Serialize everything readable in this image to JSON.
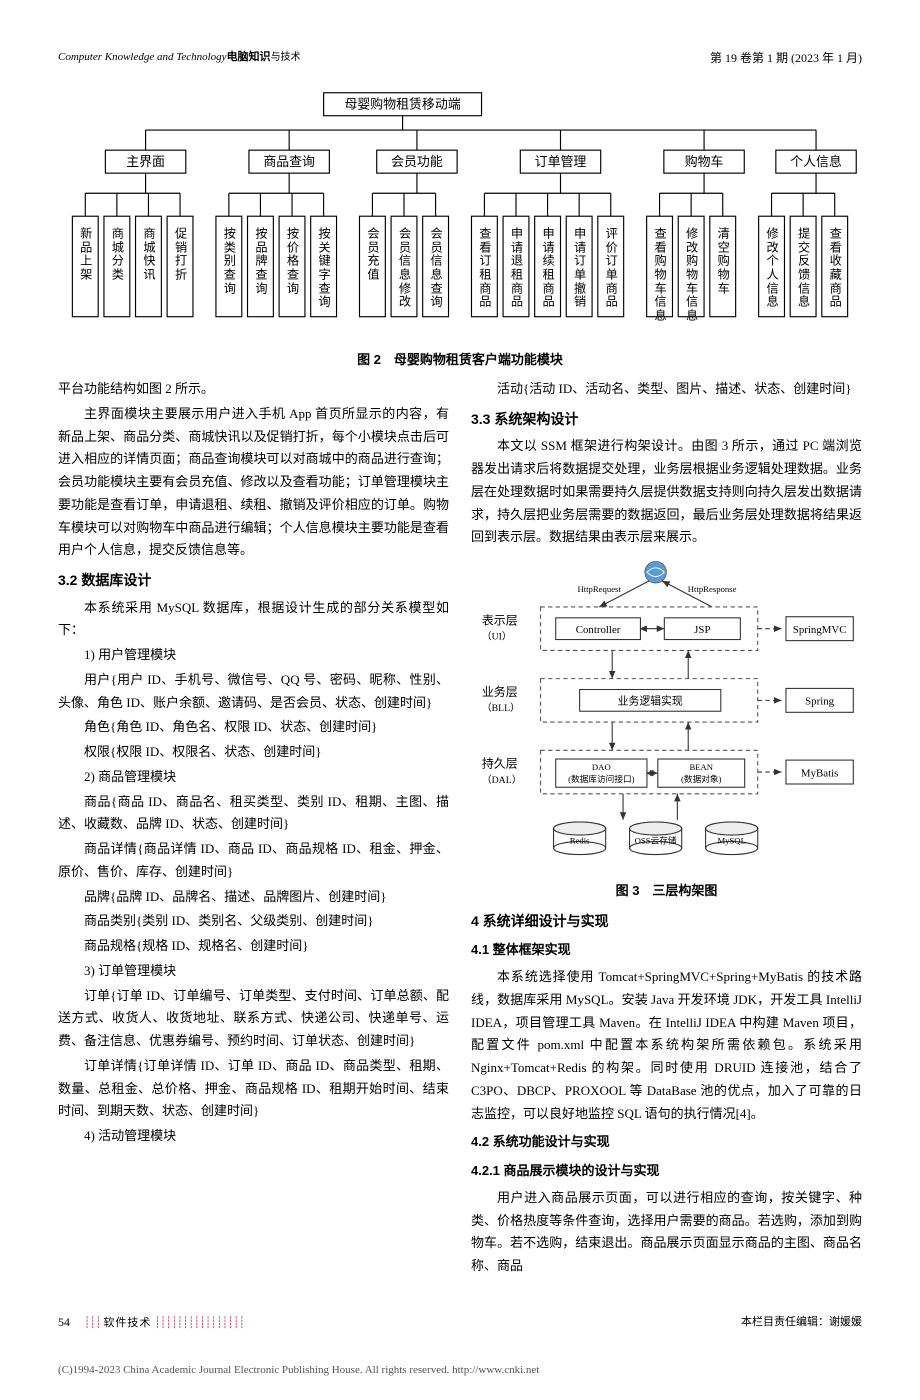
{
  "header": {
    "journal_en": "Computer Knowledge and Technology",
    "journal_cn_bold": "电脑知识",
    "journal_cn_light": "与技术",
    "issue": "第 19 卷第 1 期 (2023 年 1 月)"
  },
  "fig2": {
    "caption": "图 2　母婴购物租赁客户端功能模块",
    "root": "母婴购物租赁移动端",
    "level2": [
      "主界面",
      "商品查询",
      "会员功能",
      "订单管理",
      "购物车",
      "个人信息"
    ],
    "leaves": [
      {
        "g": 0,
        "t": "新品上架"
      },
      {
        "g": 0,
        "t": "商城分类"
      },
      {
        "g": 0,
        "t": "商城快讯"
      },
      {
        "g": 0,
        "t": "促销打折"
      },
      {
        "g": 1,
        "t": "按类别查询"
      },
      {
        "g": 1,
        "t": "按品牌查询"
      },
      {
        "g": 1,
        "t": "按价格查询"
      },
      {
        "g": 1,
        "t": "按关键字查询"
      },
      {
        "g": 2,
        "t": "会员充值"
      },
      {
        "g": 2,
        "t": "会员信息修改"
      },
      {
        "g": 2,
        "t": "会员信息查询"
      },
      {
        "g": 3,
        "t": "查看订租商品"
      },
      {
        "g": 3,
        "t": "申请退租商品"
      },
      {
        "g": 3,
        "t": "申请续租商品"
      },
      {
        "g": 3,
        "t": "申请订单撤销"
      },
      {
        "g": 3,
        "t": "评价订单商品"
      },
      {
        "g": 4,
        "t": "查看购物车信息"
      },
      {
        "g": 4,
        "t": "修改购物车信息"
      },
      {
        "g": 4,
        "t": "清空购物车"
      },
      {
        "g": 5,
        "t": "修改个人信息"
      },
      {
        "g": 5,
        "t": "提交反馈信息"
      },
      {
        "g": 5,
        "t": "查看收藏商品"
      }
    ]
  },
  "left": {
    "p0": "平台功能结构如图 2 所示。",
    "p1": "主界面模块主要展示用户进入手机 App 首页所显示的内容，有新品上架、商品分类、商城快讯以及促销打折，每个小模块点击后可进入相应的详情页面；商品查询模块可以对商城中的商品进行查询；会员功能模块主要有会员充值、修改以及查看功能；订单管理模块主要功能是查看订单，申请退租、续租、撤销及评价相应的订单。购物车模块可以对购物车中商品进行编辑；个人信息模块主要功能是查看用户个人信息，提交反馈信息等。",
    "h3_2": "3.2 数据库设计",
    "p2": "本系统采用 MySQL 数据库，根据设计生成的部分关系模型如下：",
    "l1": "1) 用户管理模块",
    "l1a": "用户{用户 ID、手机号、微信号、QQ 号、密码、昵称、性别、头像、角色 ID、账户余额、邀请码、是否会员、状态、创建时间}",
    "l1b": "角色{角色 ID、角色名、权限 ID、状态、创建时间}",
    "l1c": "权限{权限 ID、权限名、状态、创建时间}",
    "l2": "2) 商品管理模块",
    "l2a": "商品{商品 ID、商品名、租买类型、类别 ID、租期、主图、描述、收藏数、品牌 ID、状态、创建时间}",
    "l2b": "商品详情{商品详情 ID、商品 ID、商品规格 ID、租金、押金、原价、售价、库存、创建时间}",
    "l2c": "品牌{品牌 ID、品牌名、描述、品牌图片、创建时间}",
    "l2d": "商品类别{类别 ID、类别名、父级类别、创建时间}",
    "l2e": "商品规格{规格 ID、规格名、创建时间}",
    "l3": "3) 订单管理模块",
    "l3a": "订单{订单 ID、订单编号、订单类型、支付时间、订单总额、配送方式、收货人、收货地址、联系方式、快递公司、快递单号、运费、备注信息、优惠券编号、预约时间、订单状态、创建时间}",
    "l3b": "订单详情{订单详情 ID、订单 ID、商品 ID、商品类型、租期、数量、总租金、总价格、押金、商品规格 ID、租期开始时间、结束时间、到期天数、状态、创建时间}",
    "l4": "4) 活动管理模块"
  },
  "right": {
    "p_act": "活动{活动 ID、活动名、类型、图片、描述、状态、创建时间}",
    "h3_3": "3.3 系统架构设计",
    "p3": "本文以 SSM 框架进行构架设计。由图 3 所示，通过 PC 端浏览器发出请求后将数据提交处理，业务层根据业务逻辑处理数据。业务层在处理数据时如果需要持久层提供数据支持则向持久层发出数据请求，持久层把业务层需要的数据返回，最后业务层处理数据将结果返回到表示层。数据结果由表示层来展示。",
    "fig3": {
      "caption": "图 3　三层构架图",
      "layers": [
        "表示层\n（UI）",
        "业务层\n（BLL）",
        "持久层\n（DAL）"
      ],
      "ui_boxes": [
        "Controller",
        "JSP"
      ],
      "ui_right": "SpringMVC",
      "bll_box": "业务逻辑实现",
      "bll_right": "Spring",
      "dal_boxes": [
        "DAO\n(数据库访问接口)",
        "BEAN\n(数据对象)"
      ],
      "dal_right": "MyBatis",
      "dbs": [
        "Redis",
        "OSS云存储",
        "MySQL"
      ],
      "http_req": "HttpRequest",
      "http_resp": "HttpResponse"
    },
    "h4": "4 系统详细设计与实现",
    "h4_1": "4.1 整体框架实现",
    "p4": "本系统选择使用 Tomcat+SpringMVC+Spring+MyBatis 的技术路线，数据库采用 MySQL。安装 Java 开发环境 JDK，开发工具 IntelliJ IDEA，项目管理工具 Maven。在 IntelliJ IDEA 中构建 Maven 项目，配置文件 pom.xml 中配置本系统构架所需依赖包。系统采用 Nginx+Tomcat+Redis 的构架。同时使用 DRUID 连接池，结合了 C3PO、DBCP、PROXOOL 等 DataBase 池的优点，加入了可靠的日志监控，可以良好地监控 SQL 语句的执行情况[4]。",
    "h4_2": "4.2 系统功能设计与实现",
    "h4_2_1": "4.2.1 商品展示模块的设计与实现",
    "p5": "用户进入商品展示页面，可以进行相应的查询，按关键字、种类、价格热度等条件查询，选择用户需要的商品。若选购，添加到购物车。若不选购，结束退出。商品展示页面显示商品的主图、商品名称、商品"
  },
  "footer": {
    "page": "54",
    "section": "软件技术",
    "editor": "本栏目责任编辑：谢媛媛",
    "copyright": "(C)1994-2023 China Academic Journal Electronic Publishing House. All rights reserved.    http://www.cnki.net"
  }
}
